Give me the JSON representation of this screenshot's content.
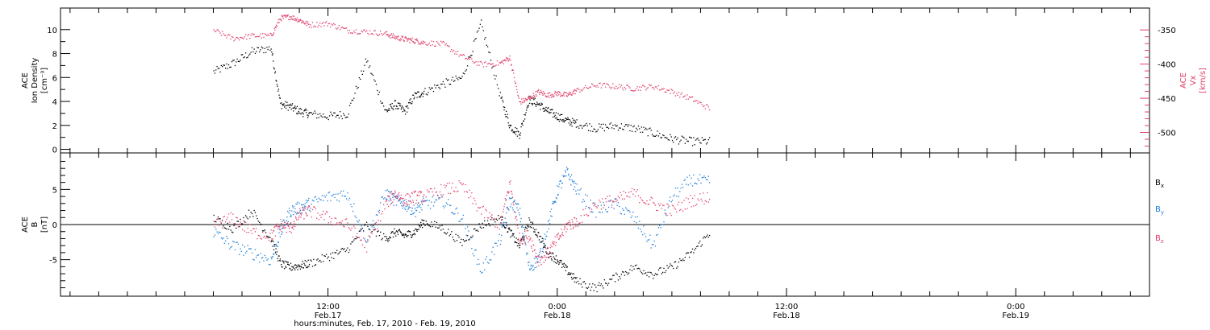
{
  "chart_data": [
    {
      "type": "scatter",
      "panel": "top",
      "ylabel_left": [
        "ACE",
        "Ion Density",
        "[cm⁻³]"
      ],
      "ylabel_right": [
        "ACE",
        "Vx",
        "[km/s]"
      ],
      "yticks_left": [
        0,
        2,
        4,
        6,
        8,
        10
      ],
      "ylim_left": [
        -0.3,
        11.8
      ],
      "yticks_right": [
        -350,
        -400,
        -450,
        -500
      ],
      "ylim_right": [
        -530,
        -318
      ],
      "x_hours": [
        0,
        2,
        4,
        6,
        7,
        8,
        9,
        10,
        12,
        14,
        16,
        18,
        19,
        20,
        21,
        22,
        24,
        26,
        28,
        30,
        31,
        32,
        33,
        34,
        35,
        36,
        37,
        38,
        40,
        42,
        44,
        46,
        48,
        50,
        52
      ],
      "series": [
        {
          "name": "",
          "color": "#000000",
          "axis": "left",
          "values": [
            6.5,
            7.2,
            8.2,
            8.5,
            3.8,
            3.6,
            3.2,
            3.0,
            2.8,
            3.0,
            7.5,
            3.2,
            3.8,
            3.2,
            4.5,
            4.8,
            5.5,
            6.0,
            10.5,
            4.5,
            2.0,
            1.3,
            4.2,
            3.8,
            3.2,
            2.8,
            2.4,
            2.2,
            1.8,
            2.0,
            1.8,
            1.4,
            0.9,
            0.7,
            0.7
          ]
        },
        {
          "name": "",
          "color": "#e0406a",
          "axis": "right",
          "values": [
            -350,
            -362,
            -358,
            -358,
            -332,
            -330,
            -335,
            -342,
            -340,
            -350,
            -352,
            -355,
            -360,
            -363,
            -365,
            -368,
            -370,
            -388,
            -400,
            -398,
            -390,
            -455,
            -450,
            -440,
            -445,
            -442,
            -445,
            -438,
            -430,
            -432,
            -435,
            -432,
            -440,
            -450,
            -465
          ]
        }
      ]
    },
    {
      "type": "scatter",
      "panel": "bottom",
      "ylabel_left": [
        "ACE",
        "B",
        "[nT]"
      ],
      "yticks_left": [
        -5,
        0,
        5
      ],
      "ylim_left": [
        -10.2,
        10.2
      ],
      "x_hours": [
        0,
        2,
        4,
        6,
        7,
        8,
        9,
        10,
        12,
        14,
        16,
        18,
        19,
        20,
        21,
        22,
        24,
        26,
        28,
        30,
        31,
        32,
        33,
        34,
        35,
        36,
        37,
        38,
        40,
        42,
        44,
        46,
        48,
        50,
        52
      ],
      "series": [
        {
          "name": "Bx",
          "color": "#000000",
          "values": [
            1.0,
            -0.5,
            2.0,
            -2.0,
            -5.5,
            -6.0,
            -5.8,
            -5.5,
            -4.5,
            -3.5,
            0.0,
            -2.0,
            -1.0,
            -1.5,
            -1.0,
            0.5,
            -0.5,
            -2.5,
            0.0,
            1.0,
            -1.0,
            -3.0,
            0.5,
            -1.5,
            -4.0,
            -5.0,
            -6.5,
            -8.0,
            -9.0,
            -7.5,
            -6.0,
            -7.0,
            -6.0,
            -4.0,
            -1.0
          ]
        },
        {
          "name": "By",
          "color": "#1e7ed8",
          "values": [
            -1.0,
            -3.0,
            -4.0,
            -5.0,
            -1.0,
            2.0,
            2.5,
            3.0,
            4.0,
            4.5,
            -2.0,
            4.5,
            3.5,
            3.0,
            2.0,
            3.0,
            3.5,
            1.0,
            -6.5,
            -2.0,
            3.5,
            2.0,
            -6.0,
            -5.0,
            0.0,
            5.0,
            7.5,
            5.0,
            2.0,
            3.0,
            1.0,
            -3.0,
            4.0,
            6.5,
            6.0
          ]
        },
        {
          "name": "Bz",
          "color": "#e0406a",
          "values": [
            0.0,
            1.0,
            -1.0,
            -1.5,
            0.0,
            -0.5,
            1.5,
            2.0,
            1.0,
            0.0,
            -3.0,
            3.0,
            4.5,
            3.5,
            4.0,
            4.0,
            5.0,
            5.5,
            2.0,
            0.0,
            6.0,
            -2.0,
            -1.5,
            -5.0,
            -4.0,
            -2.0,
            0.0,
            0.5,
            3.0,
            3.5,
            4.5,
            3.0,
            2.0,
            3.5,
            4.0
          ]
        }
      ],
      "legend": [
        "Bx",
        "By",
        "Bz"
      ],
      "legend_position": "right"
    }
  ],
  "x_axis": {
    "xlim_hours": [
      -16,
      98
    ],
    "major_ticks": [
      {
        "hour": 12,
        "time": "12:00",
        "date": "Feb.17"
      },
      {
        "hour": 36,
        "time": "0:00",
        "date": "Feb.18"
      },
      {
        "hour": 60,
        "time": "12:00",
        "date": "Feb.18"
      },
      {
        "hour": 84,
        "time": "0:00",
        "date": "Feb.19"
      }
    ],
    "minor_step_hours": 3,
    "xlabel": "hours:minutes, Feb. 17, 2010 - Feb. 19, 2010"
  },
  "legend_labels": {
    "bx": {
      "base": "B",
      "sub": "x"
    },
    "by": {
      "base": "B",
      "sub": "y"
    },
    "bz": {
      "base": "B",
      "sub": "z"
    }
  },
  "colors": {
    "black": "#000000",
    "pink": "#e0406a",
    "blue": "#1e7ed8"
  }
}
